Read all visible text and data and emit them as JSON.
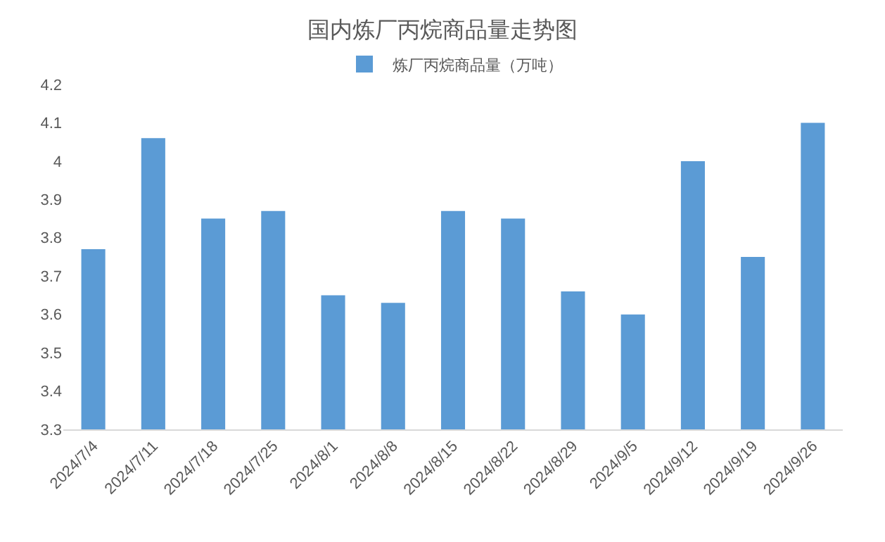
{
  "chart_data": {
    "type": "bar",
    "title": "国内炼厂丙烷商品量走势图",
    "categories": [
      "2024/7/4",
      "2024/7/11",
      "2024/7/18",
      "2024/7/25",
      "2024/8/1",
      "2024/8/8",
      "2024/8/15",
      "2024/8/22",
      "2024/8/29",
      "2024/9/5",
      "2024/9/12",
      "2024/9/19",
      "2024/9/26"
    ],
    "series": [
      {
        "name": "炼厂丙烷商品量（万吨）",
        "color": "#5b9bd5",
        "values": [
          3.77,
          4.06,
          3.85,
          3.87,
          3.65,
          3.63,
          3.87,
          3.85,
          3.66,
          3.6,
          4.0,
          3.75,
          4.1
        ]
      }
    ],
    "ylim": [
      3.3,
      4.2
    ],
    "yticks": [
      3.3,
      3.4,
      3.5,
      3.6,
      3.7,
      3.8,
      3.9,
      4,
      4.1,
      4.2
    ],
    "grid": false,
    "legend": "top"
  }
}
